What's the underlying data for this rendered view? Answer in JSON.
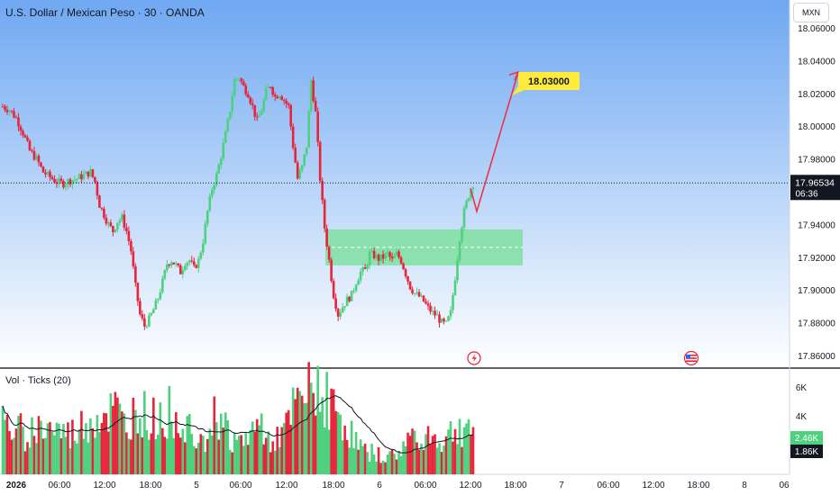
{
  "header": {
    "title": "U.S. Dollar / Mexican Peso · 30 · OANDA",
    "currency": "MXN"
  },
  "colors": {
    "up": "#4ed17e",
    "down": "#e8243a",
    "forecast": "#e83548",
    "zone": "#7fe0a0",
    "label_bg": "#ffeb3b",
    "bg_top": "#6fa8f2",
    "bg_bottom": "#ffffff"
  },
  "price_axis": {
    "ticks": [
      "18.06000",
      "18.04000",
      "18.02000",
      "18.00000",
      "17.98000",
      "17.96000",
      "17.94000",
      "17.92000",
      "17.90000",
      "17.88000",
      "17.86000"
    ],
    "min": 17.85,
    "max": 18.065
  },
  "last_price": {
    "value": "17.96534",
    "countdown": "06:36"
  },
  "target": {
    "label": "18.03000",
    "price": 18.03
  },
  "zone": {
    "top": 17.937,
    "bottom": 17.915
  },
  "volume": {
    "title": "Vol · Ticks (20)",
    "ticks": [
      "6K",
      "4K"
    ],
    "last_up": "2.46K",
    "last_ma": "1.86K"
  },
  "time_axis": {
    "labels": [
      "2026",
      "06:00",
      "12:00",
      "18:00",
      "5",
      "06:00",
      "12:00",
      "18:00",
      "6",
      "06:00",
      "12:00",
      "18:00",
      "7",
      "06:00",
      "12:00",
      "18:00",
      "8",
      "06"
    ]
  },
  "chart_data": {
    "type": "candlestick",
    "title": "U.S. Dollar / Mexican Peso · 30 · OANDA",
    "y_unit": "MXN",
    "ylim": [
      17.85,
      18.065
    ],
    "x_labels": [
      "2026",
      "06:00",
      "12:00",
      "18:00",
      "5",
      "06:00",
      "12:00",
      "18:00",
      "6",
      "06:00",
      "12:00",
      "18:00",
      "7",
      "06:00",
      "12:00",
      "18:00",
      "8",
      "06"
    ],
    "keypoints": [
      [
        0,
        18.012
      ],
      [
        3,
        18.01
      ],
      [
        6,
        18.005
      ],
      [
        9,
        17.996
      ],
      [
        12,
        17.985
      ],
      [
        15,
        17.98
      ],
      [
        18,
        17.972
      ],
      [
        21,
        17.969
      ],
      [
        24,
        17.966
      ],
      [
        27,
        17.965
      ],
      [
        30,
        17.967
      ],
      [
        33,
        17.968
      ],
      [
        36,
        17.97
      ],
      [
        39,
        17.972
      ],
      [
        41,
        17.966
      ],
      [
        43,
        17.952
      ],
      [
        45,
        17.946
      ],
      [
        47,
        17.94
      ],
      [
        49,
        17.936
      ],
      [
        51,
        17.942
      ],
      [
        53,
        17.944
      ],
      [
        55,
        17.936
      ],
      [
        57,
        17.924
      ],
      [
        59,
        17.902
      ],
      [
        61,
        17.885
      ],
      [
        63,
        17.878
      ],
      [
        65,
        17.882
      ],
      [
        67,
        17.888
      ],
      [
        69,
        17.895
      ],
      [
        71,
        17.905
      ],
      [
        73,
        17.916
      ],
      [
        75,
        17.918
      ],
      [
        77,
        17.915
      ],
      [
        79,
        17.911
      ],
      [
        81,
        17.917
      ],
      [
        83,
        17.918
      ],
      [
        85,
        17.913
      ],
      [
        87,
        17.918
      ],
      [
        89,
        17.93
      ],
      [
        91,
        17.948
      ],
      [
        93,
        17.962
      ],
      [
        95,
        17.97
      ],
      [
        97,
        17.982
      ],
      [
        99,
        17.995
      ],
      [
        101,
        18.01
      ],
      [
        103,
        18.028
      ],
      [
        105,
        18.03
      ],
      [
        107,
        18.024
      ],
      [
        109,
        18.02
      ],
      [
        111,
        18.012
      ],
      [
        113,
        18.003
      ],
      [
        115,
        18.01
      ],
      [
        117,
        18.021
      ],
      [
        119,
        18.025
      ],
      [
        121,
        18.018
      ],
      [
        123,
        18.02
      ],
      [
        125,
        18.016
      ],
      [
        127,
        18.012
      ],
      [
        129,
        17.988
      ],
      [
        131,
        17.968
      ],
      [
        133,
        17.975
      ],
      [
        135,
        17.988
      ],
      [
        137,
        18.028
      ],
      [
        139,
        18.008
      ],
      [
        141,
        17.968
      ],
      [
        143,
        17.938
      ],
      [
        145,
        17.918
      ],
      [
        147,
        17.897
      ],
      [
        149,
        17.885
      ],
      [
        151,
        17.89
      ],
      [
        153,
        17.894
      ],
      [
        155,
        17.897
      ],
      [
        157,
        17.905
      ],
      [
        159,
        17.911
      ],
      [
        161,
        17.912
      ],
      [
        163,
        17.922
      ],
      [
        165,
        17.921
      ],
      [
        167,
        17.919
      ],
      [
        169,
        17.92
      ],
      [
        171,
        17.922
      ],
      [
        173,
        17.918
      ],
      [
        175,
        17.922
      ],
      [
        177,
        17.918
      ],
      [
        179,
        17.91
      ],
      [
        181,
        17.902
      ],
      [
        183,
        17.898
      ],
      [
        185,
        17.896
      ],
      [
        187,
        17.893
      ],
      [
        189,
        17.889
      ],
      [
        191,
        17.886
      ],
      [
        193,
        17.884
      ],
      [
        195,
        17.88
      ],
      [
        197,
        17.879
      ],
      [
        199,
        17.886
      ],
      [
        201,
        17.908
      ],
      [
        203,
        17.932
      ],
      [
        205,
        17.948
      ],
      [
        207,
        17.958
      ],
      [
        208,
        17.962
      ],
      [
        209,
        17.965
      ]
    ],
    "volume_keypoints": [
      [
        0,
        3300
      ],
      [
        10,
        2800
      ],
      [
        20,
        3200
      ],
      [
        30,
        2600
      ],
      [
        40,
        3800
      ],
      [
        50,
        4300
      ],
      [
        55,
        3000
      ],
      [
        60,
        4700
      ],
      [
        65,
        3500
      ],
      [
        70,
        3900
      ],
      [
        75,
        4300
      ],
      [
        80,
        3400
      ],
      [
        85,
        3300
      ],
      [
        90,
        2600
      ],
      [
        95,
        4200
      ],
      [
        100,
        2900
      ],
      [
        105,
        2000
      ],
      [
        110,
        2800
      ],
      [
        115,
        3300
      ],
      [
        120,
        2400
      ],
      [
        125,
        2700
      ],
      [
        130,
        4500
      ],
      [
        135,
        5200
      ],
      [
        138,
        5700
      ],
      [
        140,
        6200
      ],
      [
        143,
        5700
      ],
      [
        146,
        4500
      ],
      [
        150,
        3900
      ],
      [
        155,
        2600
      ],
      [
        160,
        1600
      ],
      [
        165,
        1400
      ],
      [
        170,
        1100
      ],
      [
        175,
        1300
      ],
      [
        180,
        2300
      ],
      [
        185,
        2800
      ],
      [
        190,
        2600
      ],
      [
        195,
        2100
      ],
      [
        200,
        2900
      ],
      [
        205,
        3100
      ],
      [
        207,
        3600
      ],
      [
        209,
        2460
      ]
    ],
    "forecast": {
      "from_price": 17.948,
      "to_price": 18.033,
      "target": 18.03
    },
    "zone": [
      17.915,
      17.937
    ]
  }
}
